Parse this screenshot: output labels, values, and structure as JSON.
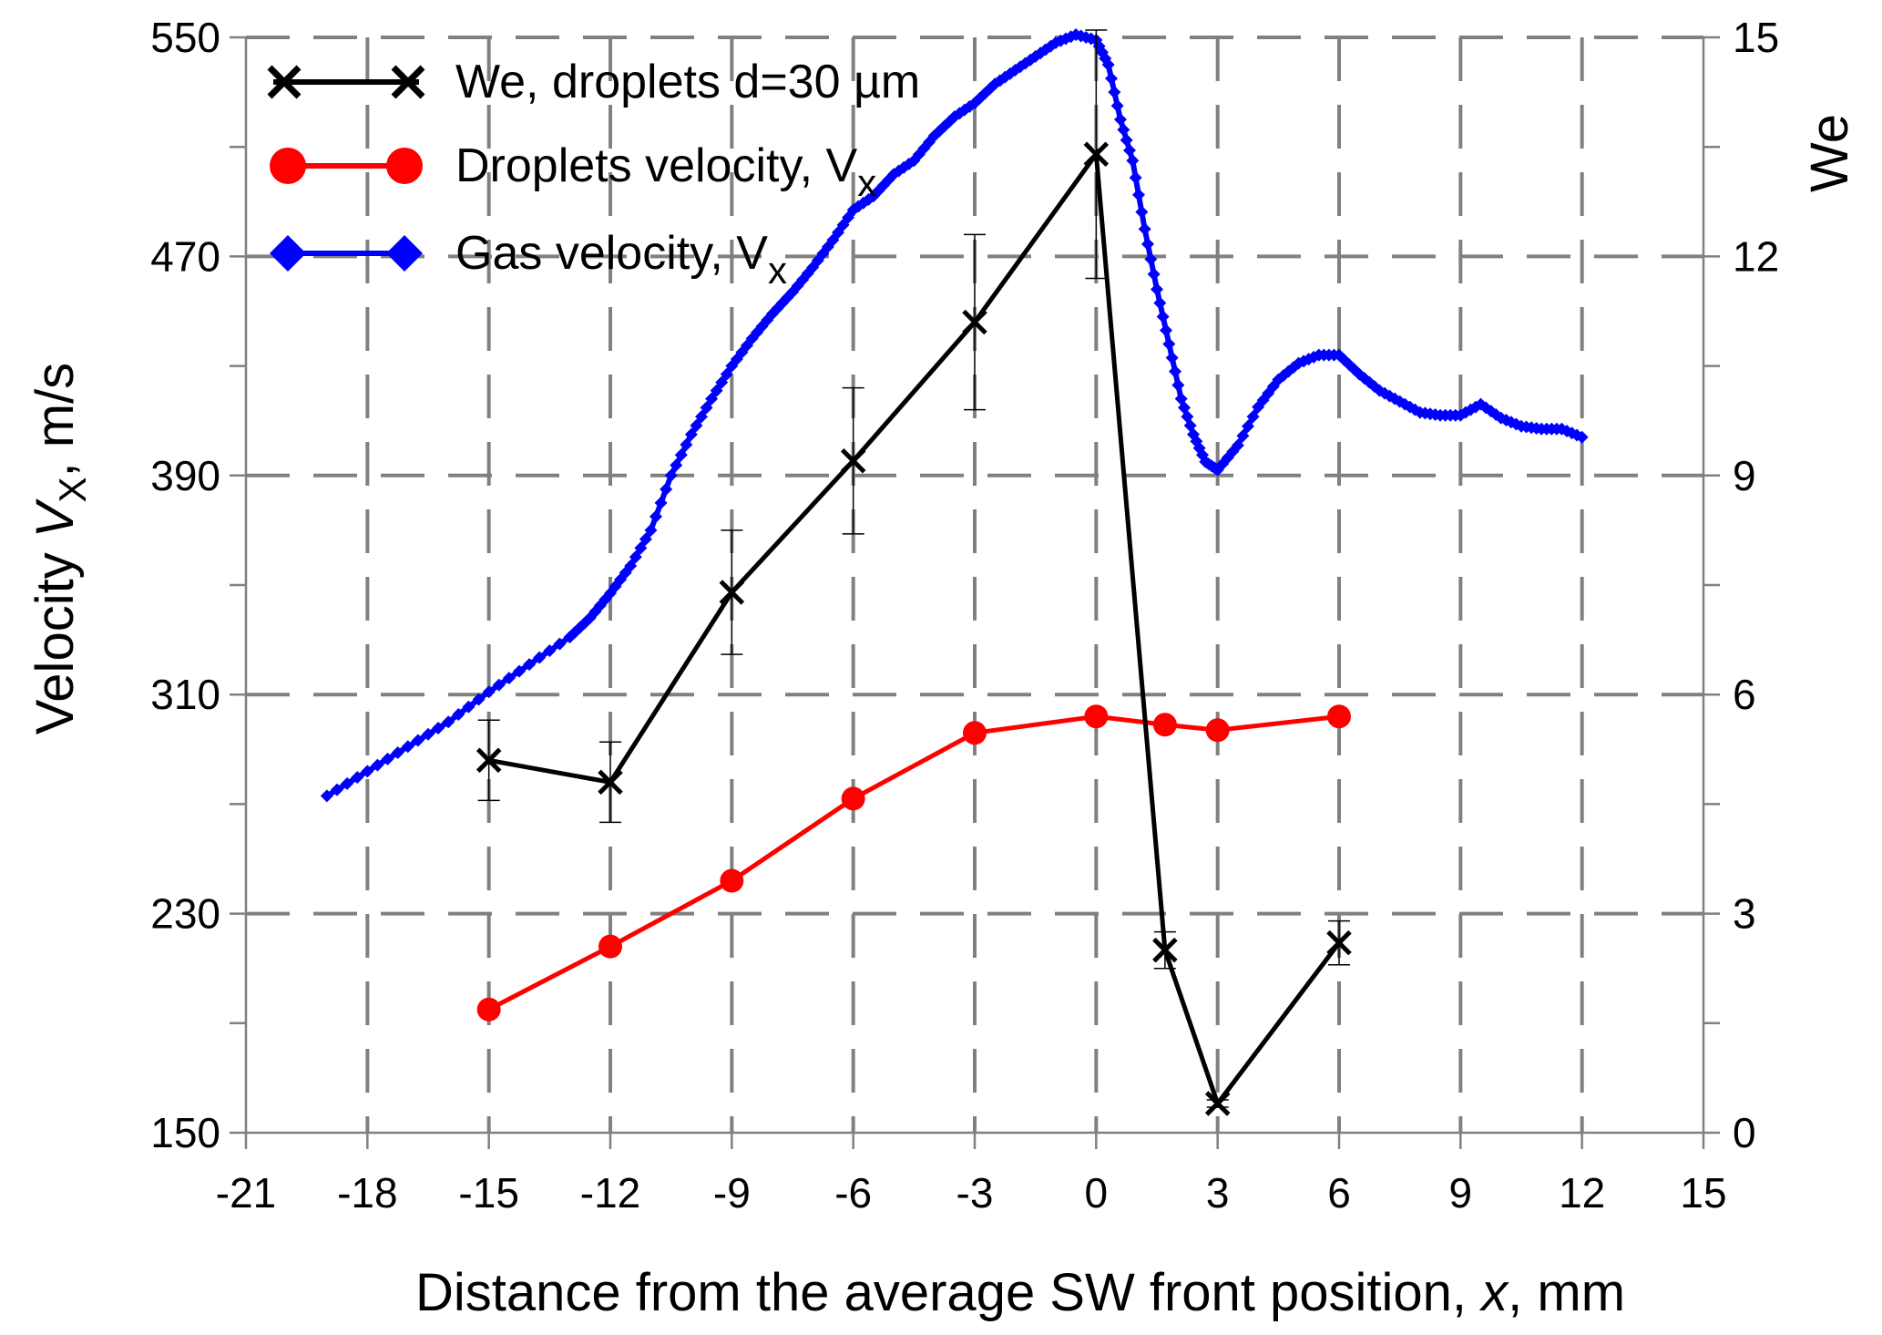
{
  "chart_data": {
    "type": "line",
    "xlabel": {
      "prefix": "Distance from the average SW front position, ",
      "italic": "x",
      "suffix": ", mm"
    },
    "ylabel_left": {
      "prefix": "Velocity ",
      "italic": "V",
      "sub": "X",
      "suffix": ", m/s"
    },
    "ylabel_right": "We",
    "xlim": [
      -21,
      15
    ],
    "x_ticks": [
      -21,
      -18,
      -15,
      -12,
      -9,
      -6,
      -3,
      0,
      3,
      6,
      9,
      12,
      15
    ],
    "ylim_left": [
      150,
      550
    ],
    "y_ticks_left": [
      150,
      230,
      310,
      390,
      470,
      550
    ],
    "ylim_right": [
      0,
      15
    ],
    "y_ticks_right": [
      0,
      3,
      6,
      9,
      12,
      15
    ],
    "grid": "dashed",
    "legend": [
      {
        "key": "we",
        "prefix": "We, droplets d=30 µm",
        "sub": ""
      },
      {
        "key": "droplets",
        "prefix": "Droplets velocity, V",
        "sub": "x"
      },
      {
        "key": "gas",
        "prefix": "Gas velocity, V",
        "sub": "x"
      }
    ],
    "series": [
      {
        "key": "gas",
        "name": "Gas velocity, Vx",
        "axis": "left",
        "color": "#0000ff",
        "x": [
          -19.0,
          -18.0,
          -17.0,
          -16.0,
          -15.0,
          -14.0,
          -13.0,
          -12.5,
          -12.0,
          -11.5,
          -11.0,
          -10.5,
          -10.0,
          -9.5,
          -9.0,
          -8.5,
          -8.0,
          -7.5,
          -7.0,
          -6.5,
          -6.0,
          -5.5,
          -5.0,
          -4.5,
          -4.0,
          -3.5,
          -3.0,
          -2.5,
          -2.0,
          -1.5,
          -1.0,
          -0.5,
          0.0,
          0.3,
          0.6,
          0.9,
          1.2,
          1.5,
          1.8,
          2.1,
          2.4,
          2.7,
          3.0,
          3.5,
          4.0,
          4.5,
          5.0,
          5.5,
          6.0,
          6.5,
          7.0,
          7.5,
          8.0,
          8.5,
          9.0,
          9.5,
          10.0,
          10.5,
          11.0,
          11.5,
          12.0
        ],
        "y": [
          273,
          282,
          291,
          300,
          311,
          321,
          331,
          338,
          347,
          357,
          370,
          390,
          405,
          418,
          430,
          440,
          449,
          457,
          466,
          476,
          487,
          492,
          500,
          505,
          514,
          521,
          526,
          533,
          538,
          543,
          548,
          551,
          549,
          540,
          520,
          505,
          480,
          458,
          438,
          418,
          405,
          395,
          392,
          401,
          415,
          425,
          431,
          434,
          434,
          427,
          421,
          417,
          413,
          412,
          412,
          416,
          411,
          408,
          407,
          407,
          404
        ]
      },
      {
        "key": "droplets",
        "name": "Droplets velocity, Vx",
        "axis": "left",
        "color": "#ff0000",
        "x": [
          -15,
          -12,
          -9,
          -6,
          -3,
          0,
          1.7,
          3,
          6
        ],
        "y": [
          195,
          218,
          242,
          272,
          296,
          302,
          299,
          297,
          302
        ]
      },
      {
        "key": "we",
        "name": "We, droplets d=30 µm",
        "axis": "right",
        "color": "#000000",
        "x": [
          -15,
          -12,
          -9,
          -6,
          -3,
          0,
          1.7,
          3,
          6
        ],
        "y": [
          5.1,
          4.8,
          7.4,
          9.2,
          11.1,
          13.4,
          2.5,
          0.4,
          2.6
        ],
        "error": [
          0.55,
          0.55,
          0.85,
          1.0,
          1.2,
          1.7,
          0.25,
          0.05,
          0.3
        ]
      }
    ]
  }
}
